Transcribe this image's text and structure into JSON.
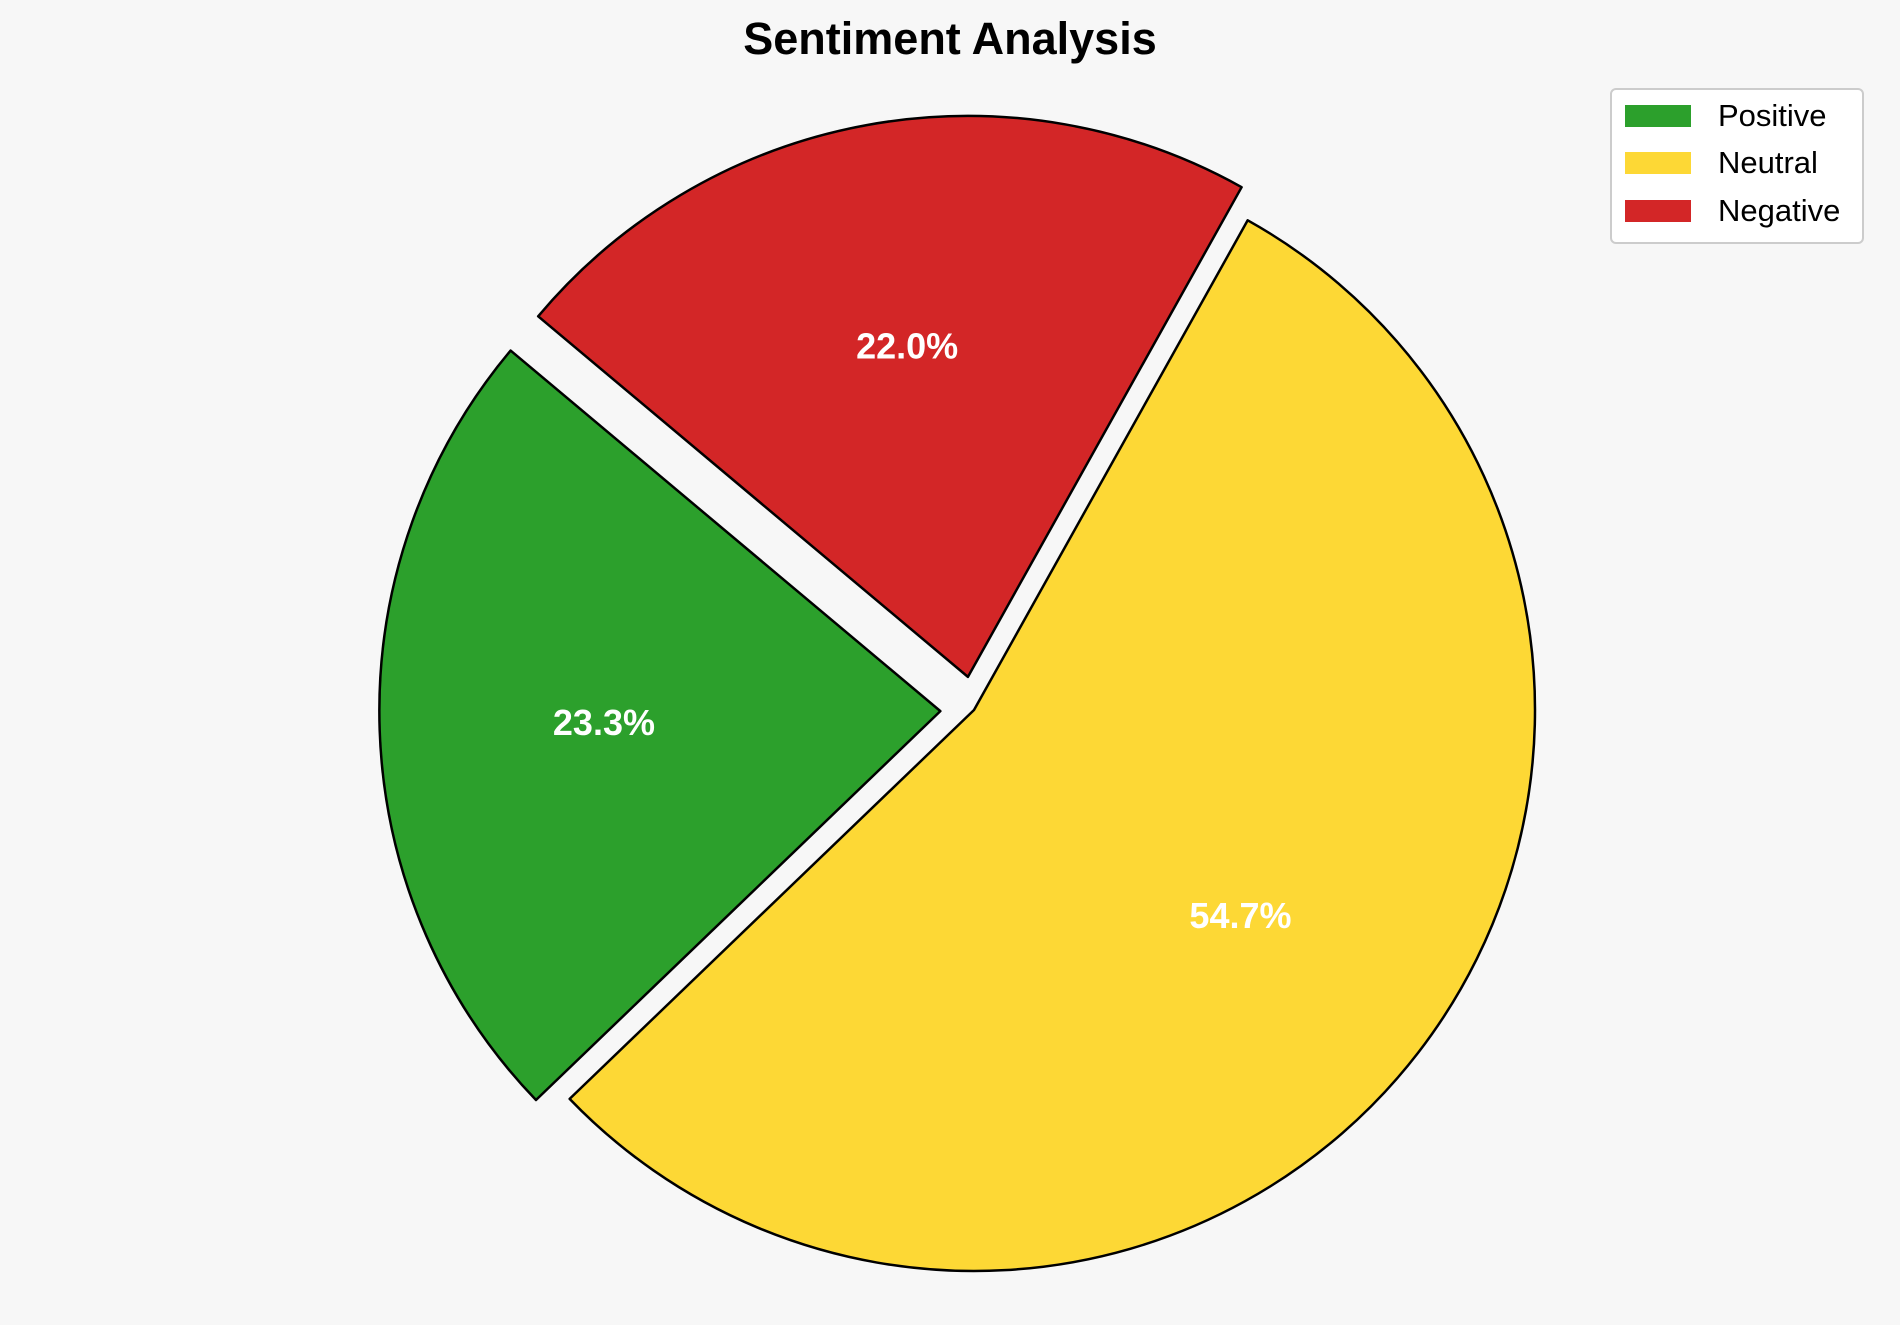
{
  "chart_data": {
    "type": "pie",
    "title": "Sentiment Analysis",
    "slices": [
      {
        "label": "Positive",
        "value": 23.3,
        "display": "23.3%",
        "color": "#2ca02c",
        "exploded": true
      },
      {
        "label": "Neutral",
        "value": 54.7,
        "display": "54.7%",
        "color": "#fdd835",
        "exploded": false
      },
      {
        "label": "Negative",
        "value": 22.0,
        "display": "22.0%",
        "color": "#d32627",
        "exploded": true
      }
    ],
    "start_angle_deg": 140,
    "direction": "counterclockwise",
    "legend": {
      "placement": "top-right",
      "items": [
        "Positive",
        "Neutral",
        "Negative"
      ]
    }
  }
}
